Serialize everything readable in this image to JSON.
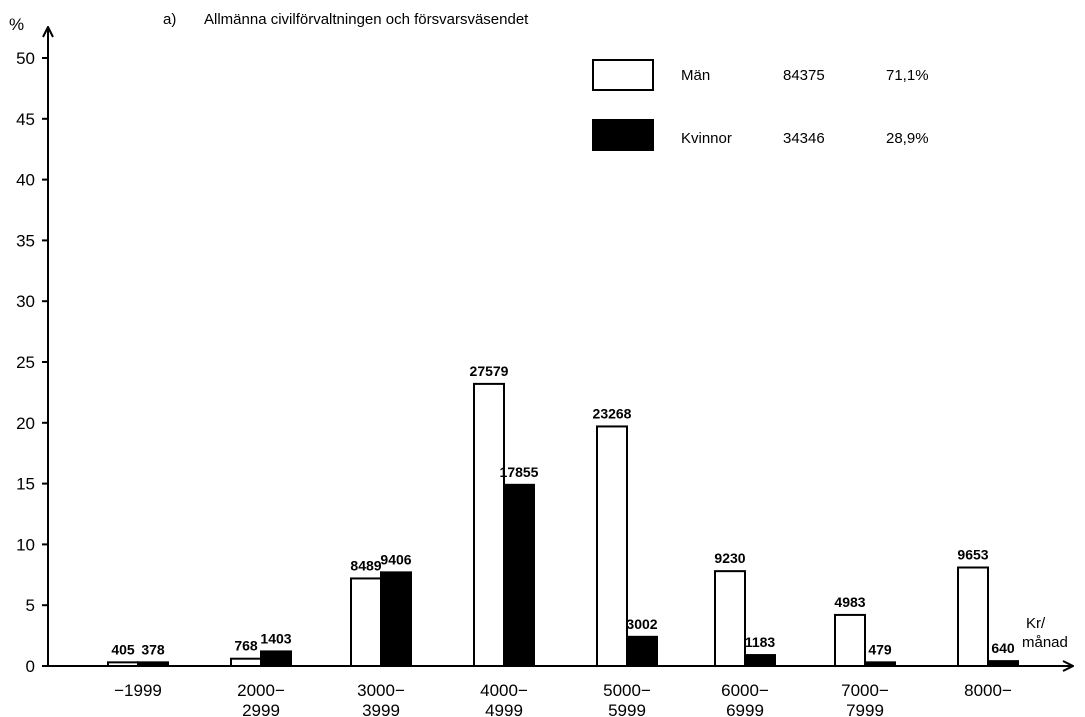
{
  "chart_data": {
    "type": "bar",
    "title_prefix": "a)",
    "title": "Allmänna civilförvaltningen och försvarsväsendet",
    "ylabel": "%",
    "xlabel": "Kr/\nmånad",
    "xlabel_lines": [
      "Kr/",
      "månad"
    ],
    "ylim": [
      0,
      50
    ],
    "yticks": [
      0,
      5,
      10,
      15,
      20,
      25,
      30,
      35,
      40,
      45,
      50
    ],
    "categories": [
      "−1999",
      "2000−2999",
      "3000−3999",
      "4000−4999",
      "5000−5999",
      "6000−6999",
      "7000−7999",
      "8000−"
    ],
    "category_lines": [
      [
        "−1999"
      ],
      [
        "2000−",
        "2999"
      ],
      [
        "3000−",
        "3999"
      ],
      [
        "4000−",
        "4999"
      ],
      [
        "5000−",
        "5999"
      ],
      [
        "6000−",
        "6999"
      ],
      [
        "7000−",
        "7999"
      ],
      [
        "8000−"
      ]
    ],
    "series": [
      {
        "name": "Män",
        "total": "84375",
        "share": "71,1%",
        "color": "#ffffff",
        "values": [
          0.3,
          0.6,
          7.2,
          23.2,
          19.7,
          7.8,
          4.2,
          8.1
        ],
        "labels": [
          "405",
          "768",
          "8489",
          "27579",
          "23268",
          "9230",
          "4983",
          "9653"
        ]
      },
      {
        "name": "Kvinnor",
        "total": "34346",
        "share": "28,9%",
        "color": "#000000",
        "values": [
          0.3,
          1.2,
          7.7,
          14.9,
          2.4,
          0.9,
          0.3,
          0.4
        ],
        "labels": [
          "378",
          "1403",
          "9406",
          "17855",
          "3002",
          "1183",
          "479",
          "640"
        ]
      }
    ],
    "legend_position": "top-right",
    "grid": false
  }
}
